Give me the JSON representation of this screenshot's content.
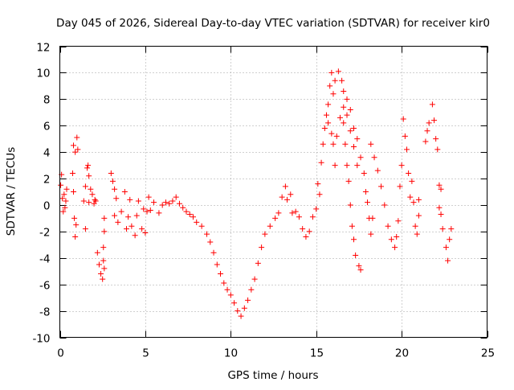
{
  "chart_data": {
    "type": "scatter",
    "title": "Day 045 of 2026, Sidereal Day-to-day VTEC variation (SDTVAR) for receiver kir0",
    "xlabel": "GPS time / hours",
    "ylabel": "SDTVAR / TECUs",
    "xlim": [
      0,
      25
    ],
    "ylim": [
      -10,
      12
    ],
    "xticks": [
      0,
      5,
      10,
      15,
      20,
      25
    ],
    "yticks": [
      -10,
      -8,
      -6,
      -4,
      -2,
      0,
      2,
      4,
      6,
      8,
      10,
      12
    ],
    "xtick_labels": [
      "0",
      "5",
      "10",
      "15",
      "20",
      "25"
    ],
    "ytick_labels": [
      "-10",
      "-8",
      "-6",
      "-4",
      "-2",
      "0",
      "2",
      "4",
      "6",
      "8",
      "10",
      "12"
    ],
    "grid": true,
    "marker": "+",
    "color": "#ff0000",
    "series": [
      {
        "name": "kir0",
        "points": [
          [
            0.05,
            1.5
          ],
          [
            0.1,
            2.3
          ],
          [
            0.15,
            0.5
          ],
          [
            0.2,
            -0.5
          ],
          [
            0.25,
            0.8
          ],
          [
            0.3,
            -0.2
          ],
          [
            0.35,
            0.3
          ],
          [
            0.4,
            1.2
          ],
          [
            0.75,
            2.4
          ],
          [
            0.8,
            1.0
          ],
          [
            0.85,
            -1.0
          ],
          [
            0.9,
            -2.4
          ],
          [
            0.95,
            -1.5
          ],
          [
            0.8,
            4.5
          ],
          [
            0.9,
            4.0
          ],
          [
            1.0,
            5.1
          ],
          [
            1.05,
            4.2
          ],
          [
            1.4,
            0.3
          ],
          [
            1.5,
            1.4
          ],
          [
            1.6,
            2.8
          ],
          [
            1.65,
            3.0
          ],
          [
            1.7,
            2.2
          ],
          [
            1.5,
            -1.8
          ],
          [
            1.7,
            0.2
          ],
          [
            1.8,
            1.2
          ],
          [
            1.9,
            0.8
          ],
          [
            2.0,
            0.1
          ],
          [
            2.05,
            0.4
          ],
          [
            2.1,
            0.3
          ],
          [
            2.2,
            -3.6
          ],
          [
            2.3,
            -4.5
          ],
          [
            2.4,
            -5.2
          ],
          [
            2.5,
            -5.6
          ],
          [
            2.55,
            -4.2
          ],
          [
            2.6,
            -4.8
          ],
          [
            2.55,
            -3.2
          ],
          [
            2.6,
            -2.0
          ],
          [
            2.6,
            -1.0
          ],
          [
            3.0,
            2.4
          ],
          [
            3.1,
            1.8
          ],
          [
            3.2,
            1.2
          ],
          [
            3.3,
            0.5
          ],
          [
            3.2,
            -0.8
          ],
          [
            3.4,
            -1.3
          ],
          [
            3.6,
            -0.5
          ],
          [
            3.8,
            1.0
          ],
          [
            3.9,
            -1.8
          ],
          [
            4.0,
            -0.9
          ],
          [
            4.1,
            0.4
          ],
          [
            4.2,
            -1.6
          ],
          [
            4.4,
            -2.3
          ],
          [
            4.5,
            -0.8
          ],
          [
            4.6,
            0.3
          ],
          [
            4.8,
            -1.8
          ],
          [
            4.9,
            -0.3
          ],
          [
            5.0,
            -2.1
          ],
          [
            5.1,
            -0.5
          ],
          [
            5.2,
            0.6
          ],
          [
            5.3,
            -0.4
          ],
          [
            5.5,
            0.2
          ],
          [
            5.8,
            -0.6
          ],
          [
            6.0,
            0.0
          ],
          [
            6.2,
            0.2
          ],
          [
            6.4,
            0.1
          ],
          [
            6.6,
            0.3
          ],
          [
            6.8,
            0.6
          ],
          [
            7.0,
            0.1
          ],
          [
            7.2,
            -0.2
          ],
          [
            7.4,
            -0.5
          ],
          [
            7.6,
            -0.7
          ],
          [
            7.8,
            -0.9
          ],
          [
            8.0,
            -1.3
          ],
          [
            8.3,
            -1.6
          ],
          [
            8.6,
            -2.2
          ],
          [
            8.8,
            -2.8
          ],
          [
            9.0,
            -3.6
          ],
          [
            9.2,
            -4.5
          ],
          [
            9.4,
            -5.2
          ],
          [
            9.6,
            -5.9
          ],
          [
            9.8,
            -6.4
          ],
          [
            10.0,
            -6.8
          ],
          [
            10.2,
            -7.4
          ],
          [
            10.4,
            -8.0
          ],
          [
            10.6,
            -8.4
          ],
          [
            10.8,
            -7.8
          ],
          [
            11.0,
            -7.2
          ],
          [
            11.2,
            -6.4
          ],
          [
            11.4,
            -5.6
          ],
          [
            11.6,
            -4.4
          ],
          [
            11.8,
            -3.2
          ],
          [
            12.0,
            -2.2
          ],
          [
            12.3,
            -1.6
          ],
          [
            12.6,
            -1.0
          ],
          [
            12.8,
            -0.6
          ],
          [
            13.0,
            0.6
          ],
          [
            13.2,
            1.4
          ],
          [
            13.3,
            0.4
          ],
          [
            13.5,
            0.8
          ],
          [
            13.6,
            -0.6
          ],
          [
            13.8,
            -0.5
          ],
          [
            14.0,
            -0.9
          ],
          [
            14.2,
            -1.8
          ],
          [
            14.4,
            -2.4
          ],
          [
            14.6,
            -2.0
          ],
          [
            14.8,
            -0.9
          ],
          [
            15.0,
            -0.3
          ],
          [
            15.1,
            1.6
          ],
          [
            15.2,
            0.8
          ],
          [
            15.3,
            3.2
          ],
          [
            15.4,
            4.6
          ],
          [
            15.5,
            5.8
          ],
          [
            15.6,
            6.8
          ],
          [
            15.7,
            7.6
          ],
          [
            15.8,
            9.0
          ],
          [
            15.9,
            10.0
          ],
          [
            16.0,
            8.4
          ],
          [
            16.1,
            9.4
          ],
          [
            16.3,
            10.1
          ],
          [
            16.5,
            9.4
          ],
          [
            16.6,
            8.6
          ],
          [
            16.8,
            8.0
          ],
          [
            17.0,
            7.2
          ],
          [
            15.7,
            6.2
          ],
          [
            15.9,
            5.4
          ],
          [
            16.0,
            4.6
          ],
          [
            16.1,
            3.0
          ],
          [
            16.2,
            5.2
          ],
          [
            16.4,
            6.6
          ],
          [
            16.6,
            7.4
          ],
          [
            16.8,
            6.8
          ],
          [
            17.0,
            5.6
          ],
          [
            17.2,
            4.4
          ],
          [
            17.4,
            3.0
          ],
          [
            16.6,
            6.2
          ],
          [
            16.7,
            4.6
          ],
          [
            16.8,
            3.0
          ],
          [
            16.9,
            1.8
          ],
          [
            17.0,
            0.0
          ],
          [
            17.1,
            -1.6
          ],
          [
            17.2,
            -2.6
          ],
          [
            17.3,
            -3.8
          ],
          [
            17.5,
            -4.6
          ],
          [
            17.6,
            -4.9
          ],
          [
            17.2,
            5.8
          ],
          [
            17.4,
            5.0
          ],
          [
            17.6,
            3.6
          ],
          [
            17.8,
            2.4
          ],
          [
            17.9,
            1.0
          ],
          [
            18.0,
            0.2
          ],
          [
            18.1,
            -1.0
          ],
          [
            18.2,
            -2.2
          ],
          [
            18.3,
            -1.0
          ],
          [
            18.2,
            4.6
          ],
          [
            18.4,
            3.6
          ],
          [
            18.6,
            2.6
          ],
          [
            18.8,
            1.4
          ],
          [
            19.0,
            0.0
          ],
          [
            19.2,
            -1.6
          ],
          [
            19.4,
            -2.6
          ],
          [
            19.6,
            -3.2
          ],
          [
            19.7,
            -2.4
          ],
          [
            19.8,
            -1.2
          ],
          [
            19.9,
            1.4
          ],
          [
            20.0,
            3.0
          ],
          [
            20.1,
            6.5
          ],
          [
            20.2,
            5.2
          ],
          [
            20.3,
            4.2
          ],
          [
            20.4,
            2.4
          ],
          [
            20.5,
            0.6
          ],
          [
            20.6,
            1.8
          ],
          [
            20.7,
            0.2
          ],
          [
            20.8,
            -1.6
          ],
          [
            20.9,
            -2.2
          ],
          [
            21.0,
            0.4
          ],
          [
            21.0,
            -0.8
          ],
          [
            21.4,
            4.8
          ],
          [
            21.5,
            5.6
          ],
          [
            21.6,
            6.2
          ],
          [
            21.8,
            7.6
          ],
          [
            21.9,
            6.4
          ],
          [
            22.0,
            5.0
          ],
          [
            22.1,
            4.2
          ],
          [
            22.2,
            1.5
          ],
          [
            22.3,
            1.2
          ],
          [
            22.2,
            -0.2
          ],
          [
            22.3,
            -0.7
          ],
          [
            22.4,
            -1.8
          ],
          [
            22.6,
            -3.2
          ],
          [
            22.7,
            -4.2
          ],
          [
            22.8,
            -2.6
          ],
          [
            22.9,
            -1.8
          ]
        ]
      }
    ]
  }
}
